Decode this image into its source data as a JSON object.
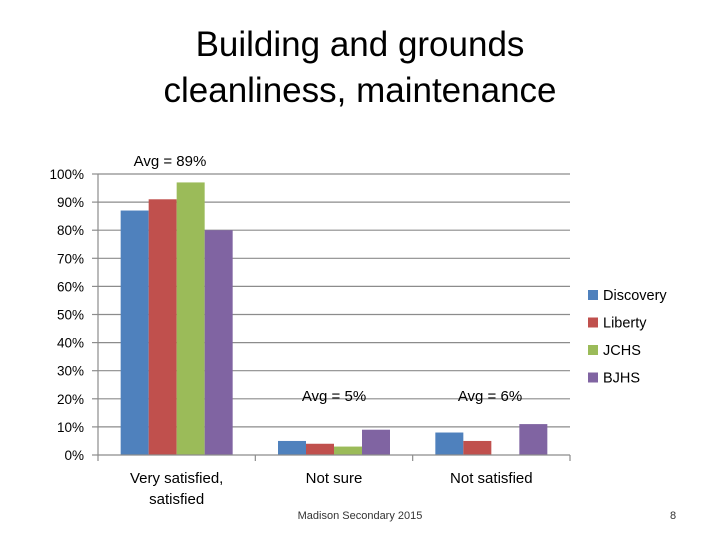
{
  "chart_data": {
    "type": "bar",
    "title_lines": [
      "Building and grounds",
      "cleanliness, maintenance"
    ],
    "categories": [
      "Very satisfied, satisfied",
      "Not sure",
      "Not satisfied"
    ],
    "category_lines": [
      [
        "Very satisfied,",
        "satisfied"
      ],
      [
        "Not sure"
      ],
      [
        "Not satisfied"
      ]
    ],
    "series": [
      {
        "name": "Discovery",
        "values": [
          87,
          5,
          8
        ]
      },
      {
        "name": "Liberty",
        "values": [
          91,
          4,
          5
        ]
      },
      {
        "name": "JCHS",
        "values": [
          97,
          3,
          0
        ]
      },
      {
        "name": "BJHS",
        "values": [
          80,
          9,
          11
        ]
      }
    ],
    "colors": [
      "#4F81BD",
      "#C0504D",
      "#9BBB59",
      "#8064A2"
    ],
    "ylim": [
      0,
      100
    ],
    "yticks": [
      "0%",
      "10%",
      "20%",
      "30%",
      "40%",
      "50%",
      "60%",
      "70%",
      "80%",
      "90%",
      "100%"
    ],
    "grid": true,
    "legend": "right",
    "annotations": [
      "Avg = 89%",
      "Avg = 5%",
      "Avg = 6%"
    ]
  },
  "footer": {
    "source": "Madison Secondary 2015",
    "page_number": "8"
  }
}
